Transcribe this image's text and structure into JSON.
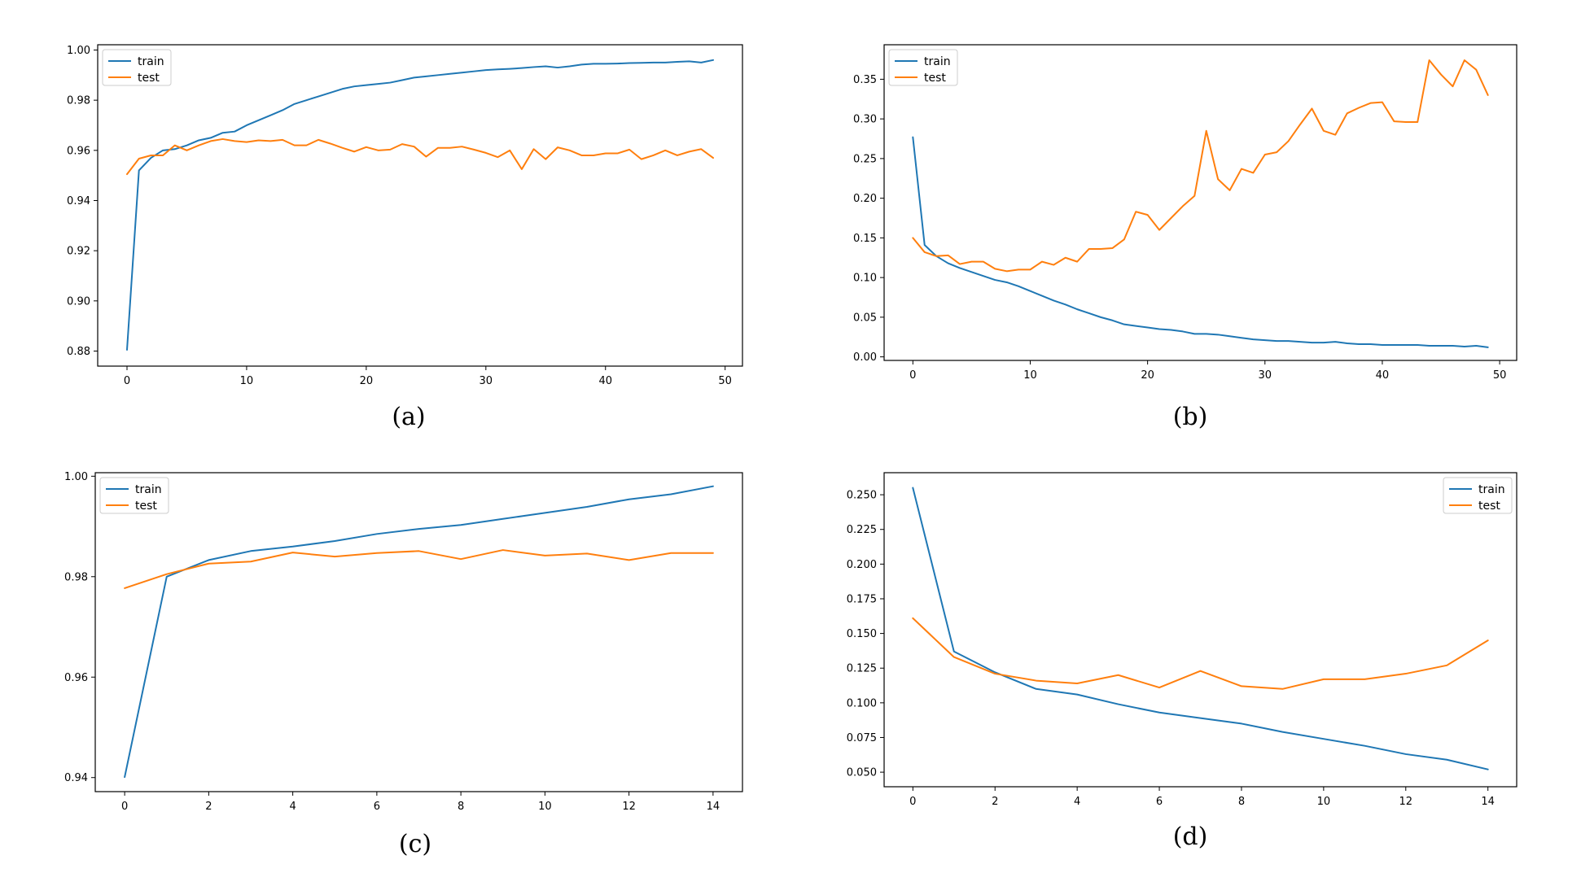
{
  "colors": {
    "train": "#1f77b4",
    "test": "#ff7f0e",
    "axis": "#000000",
    "background": "#ffffff"
  },
  "chart_data": [
    {
      "type": "line",
      "caption": "(a)",
      "legend_position": "upper-left",
      "xlim": [
        -2.45,
        51.45
      ],
      "ylim": [
        0.874,
        1.0021
      ],
      "xticks": [
        0,
        10,
        20,
        30,
        40,
        50
      ],
      "yticks": [
        0.88,
        0.9,
        0.92,
        0.94,
        0.96,
        0.98,
        1.0
      ],
      "ytick_decimals": 2,
      "x": [
        0,
        1,
        2,
        3,
        4,
        5,
        6,
        7,
        8,
        9,
        10,
        11,
        12,
        13,
        14,
        15,
        16,
        17,
        18,
        19,
        20,
        21,
        22,
        23,
        24,
        25,
        26,
        27,
        28,
        29,
        30,
        31,
        32,
        33,
        34,
        35,
        36,
        37,
        38,
        39,
        40,
        41,
        42,
        43,
        44,
        45,
        46,
        47,
        48,
        49
      ],
      "series": [
        {
          "name": "train",
          "color": "#1f77b4",
          "values": [
            0.8805,
            0.952,
            0.957,
            0.96,
            0.9605,
            0.962,
            0.964,
            0.965,
            0.967,
            0.9675,
            0.97,
            0.972,
            0.974,
            0.976,
            0.9785,
            0.98,
            0.9815,
            0.983,
            0.9845,
            0.9855,
            0.986,
            0.9865,
            0.987,
            0.988,
            0.989,
            0.9895,
            0.99,
            0.9905,
            0.991,
            0.9915,
            0.992,
            0.9923,
            0.9925,
            0.9928,
            0.9932,
            0.9935,
            0.993,
            0.9935,
            0.9942,
            0.9945,
            0.9945,
            0.9946,
            0.9948,
            0.9949,
            0.995,
            0.995,
            0.9953,
            0.9955,
            0.995,
            0.996
          ]
        },
        {
          "name": "test",
          "color": "#ff7f0e",
          "values": [
            0.9505,
            0.9567,
            0.958,
            0.958,
            0.962,
            0.96,
            0.962,
            0.9637,
            0.9645,
            0.9637,
            0.9633,
            0.964,
            0.9637,
            0.9642,
            0.962,
            0.962,
            0.9642,
            0.9627,
            0.961,
            0.9595,
            0.9613,
            0.96,
            0.9603,
            0.9625,
            0.9615,
            0.9575,
            0.961,
            0.961,
            0.9615,
            0.9603,
            0.959,
            0.9573,
            0.96,
            0.9525,
            0.9605,
            0.9565,
            0.9612,
            0.96,
            0.958,
            0.958,
            0.9588,
            0.9588,
            0.9603,
            0.9565,
            0.958,
            0.96,
            0.958,
            0.9595,
            0.9605,
            0.957
          ]
        }
      ]
    },
    {
      "type": "line",
      "caption": "(b)",
      "legend_position": "upper-left",
      "xlim": [
        -2.45,
        51.45
      ],
      "ylim": [
        -0.0045,
        0.3935
      ],
      "xticks": [
        0,
        10,
        20,
        30,
        40,
        50
      ],
      "yticks": [
        0.0,
        0.05,
        0.1,
        0.15,
        0.2,
        0.25,
        0.3,
        0.35
      ],
      "ytick_decimals": 2,
      "x": [
        0,
        1,
        2,
        3,
        4,
        5,
        6,
        7,
        8,
        9,
        10,
        11,
        12,
        13,
        14,
        15,
        16,
        17,
        18,
        19,
        20,
        21,
        22,
        23,
        24,
        25,
        26,
        27,
        28,
        29,
        30,
        31,
        32,
        33,
        34,
        35,
        36,
        37,
        38,
        39,
        40,
        41,
        42,
        43,
        44,
        45,
        46,
        47,
        48,
        49
      ],
      "series": [
        {
          "name": "train",
          "color": "#1f77b4",
          "values": [
            0.277,
            0.141,
            0.127,
            0.118,
            0.112,
            0.107,
            0.102,
            0.097,
            0.094,
            0.089,
            0.083,
            0.077,
            0.071,
            0.066,
            0.06,
            0.055,
            0.05,
            0.046,
            0.041,
            0.039,
            0.037,
            0.035,
            0.034,
            0.032,
            0.029,
            0.029,
            0.028,
            0.026,
            0.024,
            0.022,
            0.021,
            0.02,
            0.02,
            0.019,
            0.018,
            0.018,
            0.019,
            0.017,
            0.016,
            0.016,
            0.015,
            0.015,
            0.015,
            0.015,
            0.014,
            0.014,
            0.014,
            0.013,
            0.014,
            0.012
          ]
        },
        {
          "name": "test",
          "color": "#ff7f0e",
          "values": [
            0.15,
            0.132,
            0.127,
            0.128,
            0.117,
            0.12,
            0.12,
            0.111,
            0.108,
            0.11,
            0.11,
            0.12,
            0.116,
            0.125,
            0.12,
            0.136,
            0.136,
            0.137,
            0.148,
            0.183,
            0.179,
            0.16,
            0.175,
            0.19,
            0.203,
            0.285,
            0.224,
            0.21,
            0.237,
            0.232,
            0.255,
            0.258,
            0.272,
            0.293,
            0.313,
            0.285,
            0.28,
            0.307,
            0.314,
            0.32,
            0.321,
            0.297,
            0.296,
            0.296,
            0.374,
            0.356,
            0.341,
            0.374,
            0.362,
            0.33
          ]
        }
      ]
    },
    {
      "type": "line",
      "caption": "(c)",
      "legend_position": "upper-left",
      "xlim": [
        -0.7,
        14.7
      ],
      "ylim": [
        0.9372,
        1.0007
      ],
      "xticks": [
        0,
        2,
        4,
        6,
        8,
        10,
        12,
        14
      ],
      "yticks": [
        0.94,
        0.96,
        0.98,
        1.0
      ],
      "ytick_decimals": 2,
      "x": [
        0,
        1,
        2,
        3,
        4,
        5,
        6,
        7,
        8,
        9,
        10,
        11,
        12,
        13,
        14
      ],
      "series": [
        {
          "name": "train",
          "color": "#1f77b4",
          "values": [
            0.9401,
            0.98,
            0.9833,
            0.9851,
            0.986,
            0.9871,
            0.9885,
            0.9895,
            0.9903,
            0.9915,
            0.9927,
            0.9939,
            0.9954,
            0.9964,
            0.998
          ]
        },
        {
          "name": "test",
          "color": "#ff7f0e",
          "values": [
            0.9777,
            0.9805,
            0.9826,
            0.983,
            0.9848,
            0.984,
            0.9847,
            0.9851,
            0.9835,
            0.9853,
            0.9842,
            0.9846,
            0.9833,
            0.9847,
            0.9847
          ]
        }
      ]
    },
    {
      "type": "line",
      "caption": "(d)",
      "legend_position": "upper-right",
      "xlim": [
        -0.7,
        14.7
      ],
      "ylim": [
        0.0395,
        0.2659
      ],
      "xticks": [
        0,
        2,
        4,
        6,
        8,
        10,
        12,
        14
      ],
      "yticks": [
        0.05,
        0.075,
        0.1,
        0.125,
        0.15,
        0.175,
        0.2,
        0.225,
        0.25
      ],
      "ytick_decimals": 3,
      "x": [
        0,
        1,
        2,
        3,
        4,
        5,
        6,
        7,
        8,
        9,
        10,
        11,
        12,
        13,
        14
      ],
      "series": [
        {
          "name": "train",
          "color": "#1f77b4",
          "values": [
            0.255,
            0.137,
            0.122,
            0.11,
            0.106,
            0.099,
            0.093,
            0.089,
            0.085,
            0.079,
            0.074,
            0.069,
            0.063,
            0.059,
            0.052
          ]
        },
        {
          "name": "test",
          "color": "#ff7f0e",
          "values": [
            0.161,
            0.133,
            0.121,
            0.116,
            0.114,
            0.12,
            0.111,
            0.123,
            0.112,
            0.11,
            0.117,
            0.117,
            0.121,
            0.127,
            0.145
          ]
        }
      ]
    }
  ]
}
